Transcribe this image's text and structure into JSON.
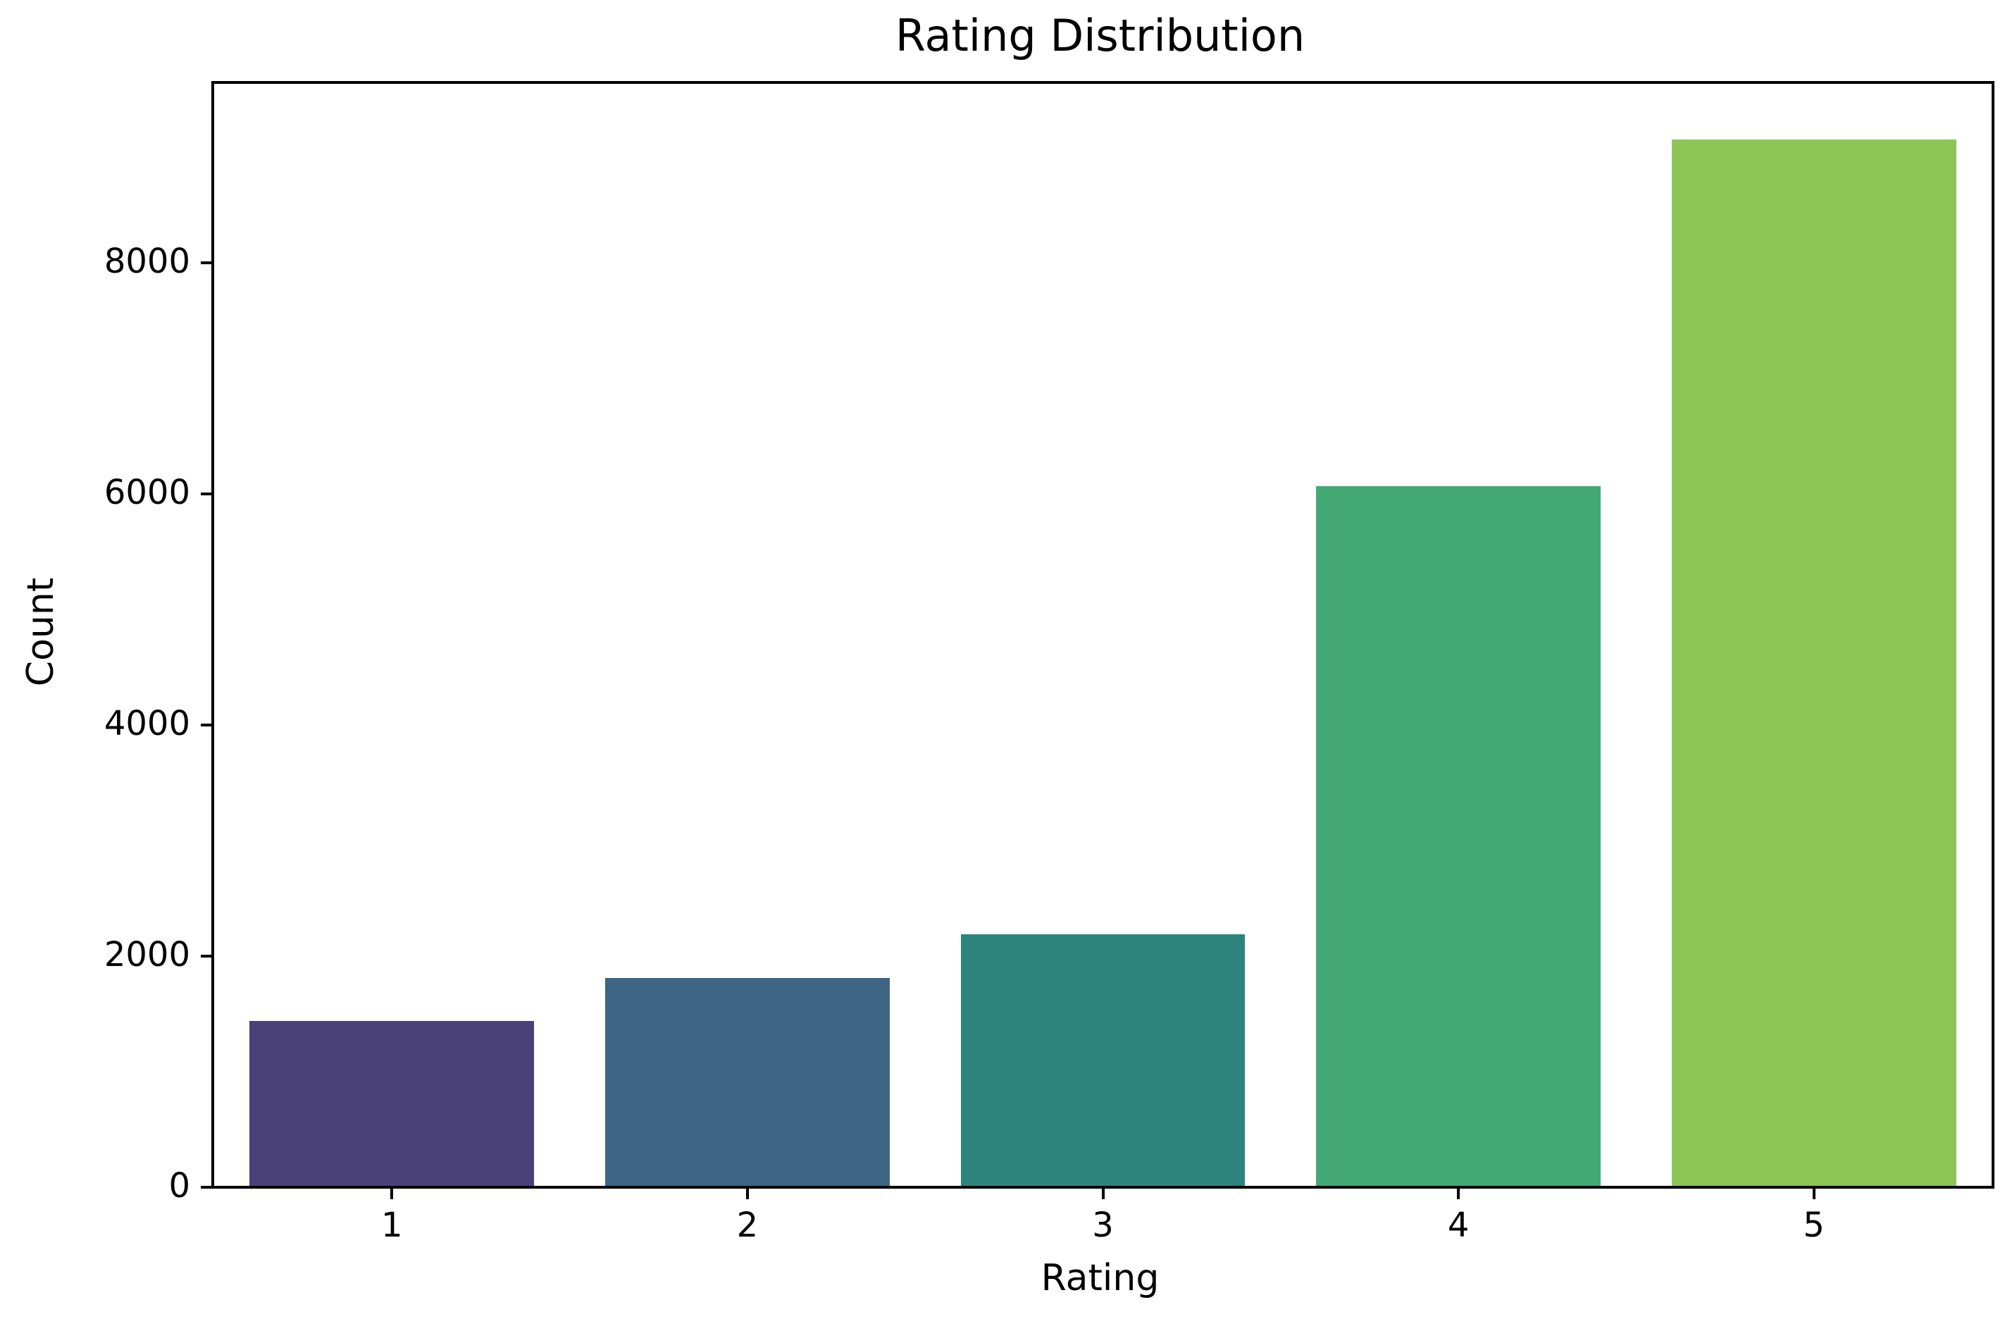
{
  "chart_data": {
    "type": "bar",
    "title": "Rating Distribution",
    "xlabel": "Rating",
    "ylabel": "Count",
    "categories": [
      "1",
      "2",
      "3",
      "4",
      "5"
    ],
    "values": [
      1430,
      1800,
      2180,
      6060,
      9060
    ],
    "bar_colors": [
      "#4a4178",
      "#3e6583",
      "#2d847d",
      "#43a873",
      "#8dc656"
    ],
    "yticks": [
      0,
      2000,
      4000,
      6000,
      8000
    ],
    "ytick_labels": [
      "0",
      "2000",
      "4000",
      "6000",
      "8000"
    ],
    "ylim": [
      0,
      9540
    ],
    "bar_width_fraction": 0.8,
    "grid": "off",
    "legend": "none",
    "spine_color": "#000000",
    "background_color": "#ffffff"
  }
}
